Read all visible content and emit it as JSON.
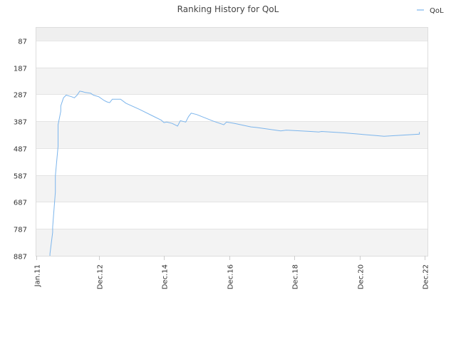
{
  "chart_data": {
    "type": "line",
    "title": "Ranking History for QoL",
    "xlabel": "",
    "ylabel": "",
    "y_inverted": true,
    "ylim": [
      887,
      37
    ],
    "xlim": [
      "2011-01",
      "2023-01"
    ],
    "x_tick_labels": [
      "Jan.11",
      "Dec.12",
      "Dec.14",
      "Dec.16",
      "Dec.18",
      "Dec.20",
      "Dec.22"
    ],
    "y_tick_labels": [
      "87",
      "187",
      "287",
      "387",
      "487",
      "587",
      "687",
      "787",
      "887"
    ],
    "grid": true,
    "legend_position": "top-right",
    "series": [
      {
        "name": "QoL",
        "color": "#7cb5ec",
        "points": [
          [
            "2011-06",
            887
          ],
          [
            "2011-06",
            880
          ],
          [
            "2011-07",
            800
          ],
          [
            "2011-07",
            780
          ],
          [
            "2011-08",
            650
          ],
          [
            "2011-08",
            590
          ],
          [
            "2011-09",
            480
          ],
          [
            "2011-09",
            400
          ],
          [
            "2011-10",
            350
          ],
          [
            "2011-10",
            330
          ],
          [
            "2011-11",
            300
          ],
          [
            "2011-12",
            290
          ],
          [
            "2012-01",
            293
          ],
          [
            "2012-02",
            296
          ],
          [
            "2012-03",
            300
          ],
          [
            "2012-04",
            290
          ],
          [
            "2012-05",
            275
          ],
          [
            "2012-06",
            277
          ],
          [
            "2012-07",
            280
          ],
          [
            "2012-09",
            283
          ],
          [
            "2012-10",
            290
          ],
          [
            "2012-12",
            296
          ],
          [
            "2013-02",
            310
          ],
          [
            "2013-03",
            315
          ],
          [
            "2013-04",
            318
          ],
          [
            "2013-05",
            305
          ],
          [
            "2013-08",
            305
          ],
          [
            "2013-10",
            320
          ],
          [
            "2014-03",
            343
          ],
          [
            "2014-08",
            368
          ],
          [
            "2014-11",
            383
          ],
          [
            "2014-12",
            392
          ],
          [
            "2015-01",
            390
          ],
          [
            "2015-03",
            395
          ],
          [
            "2015-05",
            405
          ],
          [
            "2015-06",
            385
          ],
          [
            "2015-08",
            390
          ],
          [
            "2015-09",
            370
          ],
          [
            "2015-10",
            357
          ],
          [
            "2015-12",
            362
          ],
          [
            "2016-06",
            386
          ],
          [
            "2016-10",
            400
          ],
          [
            "2016-11",
            390
          ],
          [
            "2017-02",
            395
          ],
          [
            "2017-08",
            408
          ],
          [
            "2017-10",
            410
          ],
          [
            "2018-05",
            420
          ],
          [
            "2018-07",
            423
          ],
          [
            "2018-09",
            420
          ],
          [
            "2019-06",
            425
          ],
          [
            "2019-09",
            427
          ],
          [
            "2019-10",
            425
          ],
          [
            "2020-06",
            430
          ],
          [
            "2021-06",
            440
          ],
          [
            "2021-09",
            443
          ],
          [
            "2022-10",
            435
          ],
          [
            "2022-10",
            427
          ]
        ]
      }
    ]
  }
}
